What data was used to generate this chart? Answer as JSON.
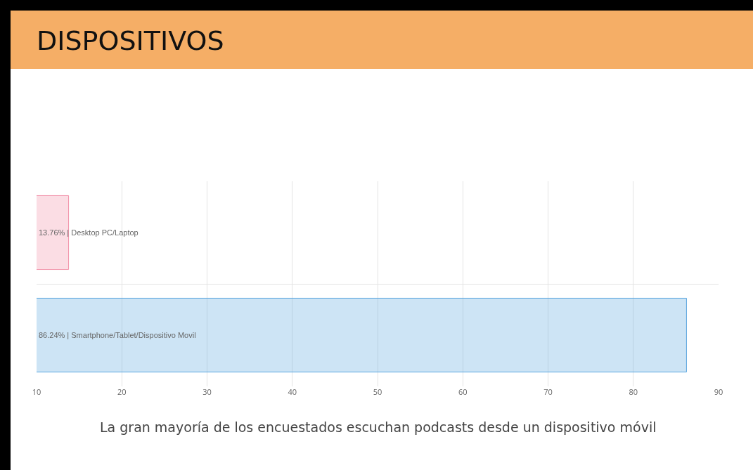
{
  "chart_data": {
    "type": "bar",
    "orientation": "horizontal",
    "title": "DISPOSITIVOS",
    "categories": [
      "13.76% | Desktop PC/Laptop",
      "86.24% | Smartphone/Tablet/Dispositivo Movil"
    ],
    "values": [
      13.76,
      86.24
    ],
    "colors": [
      "#f18fa6",
      "#5aa5df"
    ],
    "xlim": [
      10,
      90
    ],
    "xticks": [
      10,
      20,
      30,
      40,
      50,
      60,
      70,
      80,
      90
    ],
    "grid": true,
    "tick_labels": "x",
    "annotations": [
      "La gran mayoría de los encuestados escuchan podcasts desde un dispositivo móvil"
    ]
  }
}
